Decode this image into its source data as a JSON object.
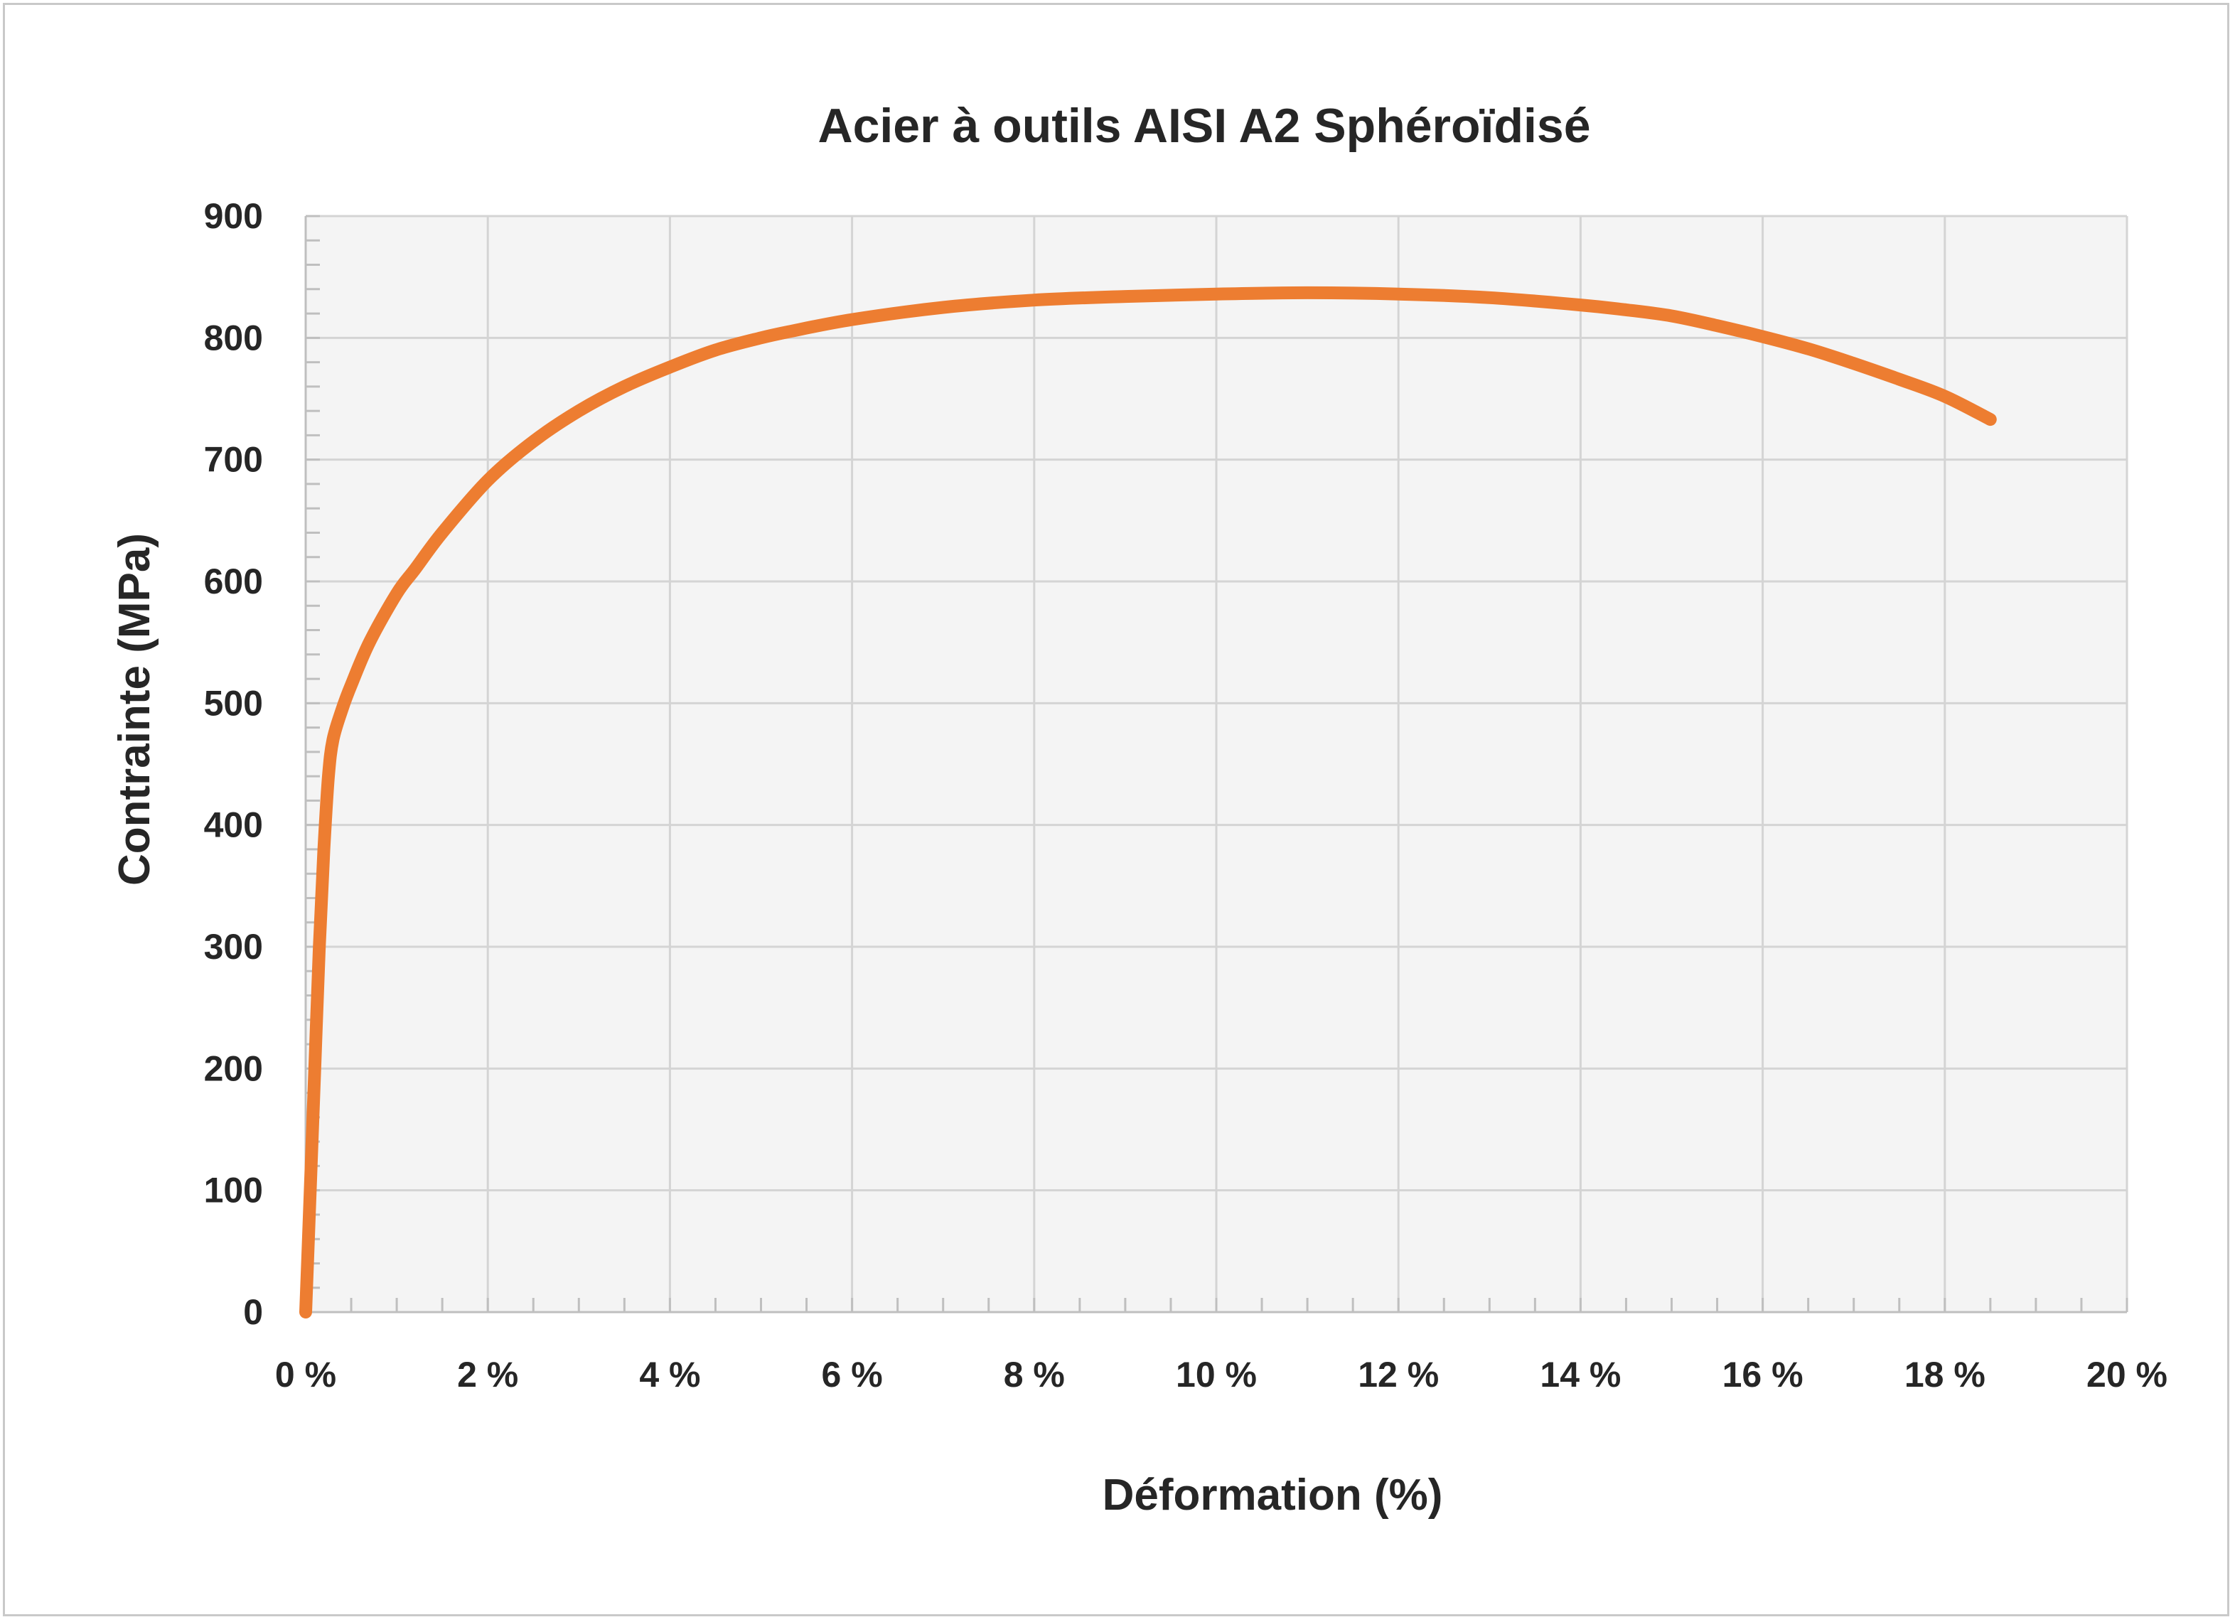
{
  "chart_data": {
    "type": "line",
    "title": "Acier à outils AISI A2 Sphéroïdisé",
    "xlabel": "Déformation (%)",
    "ylabel": "Contrainte (MPa)",
    "xlim": [
      0,
      20
    ],
    "ylim": [
      0,
      900
    ],
    "x_ticks": [
      0,
      2,
      4,
      6,
      8,
      10,
      12,
      14,
      16,
      18,
      20
    ],
    "x_tick_labels": [
      "0 %",
      "2 %",
      "4 %",
      "6 %",
      "8 %",
      "10 %",
      "12 %",
      "14 %",
      "16 %",
      "18 %",
      "20 %"
    ],
    "y_ticks": [
      0,
      100,
      200,
      300,
      400,
      500,
      600,
      700,
      800,
      900
    ],
    "y_tick_labels": [
      "0",
      "100",
      "200",
      "300",
      "400",
      "500",
      "600",
      "700",
      "800",
      "900"
    ],
    "grid": true,
    "legend": "none",
    "series": [
      {
        "color": "#ED7D31",
        "x": [
          0,
          0.05,
          0.1,
          0.15,
          0.2,
          0.25,
          0.3,
          0.4,
          0.5,
          0.7,
          1.0,
          1.2,
          1.5,
          2.0,
          2.5,
          3.0,
          3.5,
          4.0,
          4.5,
          5.0,
          5.3,
          6.0,
          7.0,
          8.0,
          9.0,
          10.0,
          11.0,
          12.0,
          13.0,
          14.0,
          14.5,
          15.0,
          15.5,
          16.0,
          16.5,
          17.0,
          17.5,
          18.0,
          18.5
        ],
        "y": [
          0,
          100,
          200,
          300,
          380,
          440,
          470,
          495,
          515,
          550,
          590,
          610,
          640,
          683,
          715,
          740,
          760,
          776,
          790,
          800,
          805,
          815,
          825,
          831,
          834,
          836,
          837,
          836,
          833,
          827,
          823,
          818,
          810,
          801,
          791,
          779,
          766,
          752,
          733
        ]
      }
    ]
  }
}
